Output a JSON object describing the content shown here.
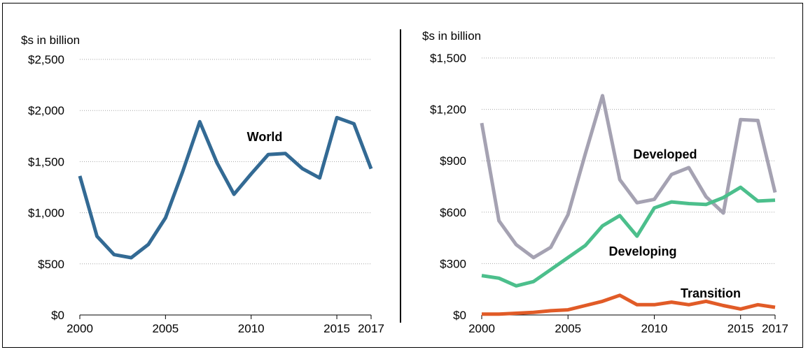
{
  "chart_data": [
    {
      "type": "line",
      "ylabel": "$s in billion",
      "ylim": [
        0,
        2500
      ],
      "yticks": [
        0,
        500,
        1000,
        1500,
        2000,
        2500
      ],
      "ytick_labels": [
        "$0",
        "$500",
        "$1,000",
        "$1,500",
        "$2,000",
        "$2,500"
      ],
      "xlim": [
        2000,
        2017
      ],
      "xtick_labels": [
        "2000",
        "2005",
        "2010",
        "2015",
        "2017"
      ],
      "grid": true,
      "x": [
        2000,
        2001,
        2002,
        2003,
        2004,
        2005,
        2006,
        2007,
        2008,
        2009,
        2010,
        2011,
        2012,
        2013,
        2014,
        2015,
        2016,
        2017
      ],
      "series": [
        {
          "name": "World",
          "color": "#336a94",
          "values": [
            1360,
            770,
            590,
            560,
            690,
            950,
            1400,
            1890,
            1490,
            1180,
            1380,
            1570,
            1580,
            1430,
            1340,
            1930,
            1870,
            1430
          ]
        }
      ]
    },
    {
      "type": "line",
      "ylabel": "$s in billion",
      "ylim": [
        0,
        1500
      ],
      "yticks": [
        0,
        300,
        600,
        900,
        1200,
        1500
      ],
      "ytick_labels": [
        "$0",
        "$300",
        "$600",
        "$900",
        "$1,200",
        "$1,500"
      ],
      "xlim": [
        2000,
        2017
      ],
      "xtick_labels": [
        "2000",
        "2005",
        "2010",
        "2015",
        "2017"
      ],
      "grid": true,
      "x": [
        2000,
        2001,
        2002,
        2003,
        2004,
        2005,
        2006,
        2007,
        2008,
        2009,
        2010,
        2011,
        2012,
        2013,
        2014,
        2015,
        2016,
        2017
      ],
      "series": [
        {
          "name": "Developed",
          "color": "#a5a2b2",
          "values": [
            1120,
            550,
            410,
            335,
            395,
            585,
            940,
            1280,
            790,
            655,
            675,
            820,
            860,
            690,
            595,
            1140,
            1135,
            715
          ]
        },
        {
          "name": "Developing",
          "color": "#4cbf8c",
          "values": [
            230,
            215,
            170,
            195,
            265,
            335,
            405,
            520,
            580,
            460,
            625,
            660,
            650,
            645,
            685,
            745,
            665,
            670
          ]
        },
        {
          "name": "Transition",
          "color": "#e15b27",
          "values": [
            5,
            5,
            10,
            15,
            25,
            30,
            55,
            80,
            115,
            60,
            60,
            75,
            60,
            80,
            55,
            35,
            60,
            45
          ]
        }
      ]
    }
  ]
}
